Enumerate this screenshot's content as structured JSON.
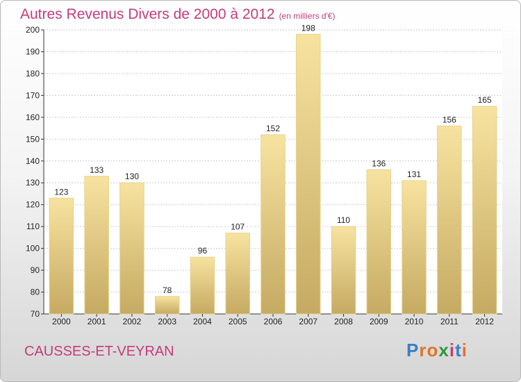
{
  "header": {
    "title": "Autres Revenus Divers de 2000 à 2012",
    "unit": "(en milliers d'€)"
  },
  "footer": {
    "location": "CAUSSES-ET-VEYRAN",
    "brand_letters": [
      "P",
      "r",
      "o",
      "x",
      "i",
      "t",
      "i"
    ],
    "brand_colors": [
      "#3a7fc4",
      "#e0742a",
      "#e0742a",
      "#2a9a3c",
      "#c43c7c",
      "#3a7fc4",
      "#e0742a"
    ]
  },
  "colors": {
    "bar_light": "#f7e3a0",
    "bar_dark": "#c5aa62",
    "title": "#c43c7c",
    "grid": "#cccccc",
    "axis": "#333333"
  },
  "chart_data": {
    "type": "bar",
    "title": "Autres Revenus Divers de 2000 à 2012",
    "subtitle": "(en milliers d'€)",
    "xlabel": "",
    "ylabel": "",
    "categories": [
      "2000",
      "2001",
      "2002",
      "2003",
      "2004",
      "2005",
      "2006",
      "2007",
      "2008",
      "2009",
      "2010",
      "2011",
      "2012"
    ],
    "values": [
      123,
      133,
      130,
      78,
      96,
      107,
      152,
      198,
      110,
      136,
      131,
      156,
      165
    ],
    "ylim": [
      70,
      200
    ],
    "yticks": [
      70,
      80,
      90,
      100,
      110,
      120,
      130,
      140,
      150,
      160,
      170,
      180,
      190,
      200
    ],
    "grid": true,
    "legend": "none"
  }
}
